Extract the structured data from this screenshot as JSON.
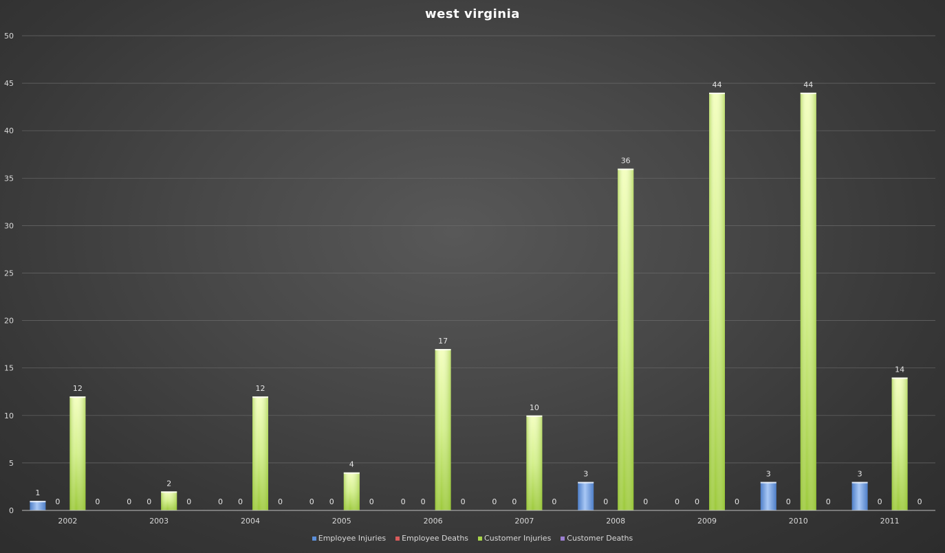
{
  "chart_data": {
    "type": "bar",
    "title": "west virginia",
    "categories": [
      "2002",
      "2003",
      "2004",
      "2005",
      "2006",
      "2007",
      "2008",
      "2009",
      "2010",
      "2011"
    ],
    "series": [
      {
        "name": "Employee Injuries",
        "color": "#5b8fd9",
        "values": [
          1,
          0,
          0,
          0,
          0,
          0,
          3,
          0,
          3,
          3
        ]
      },
      {
        "name": "Employee Deaths",
        "color": "#d95b5b",
        "values": [
          0,
          0,
          0,
          0,
          0,
          0,
          0,
          0,
          0,
          0
        ]
      },
      {
        "name": "Customer Injuries",
        "color": "#a8d44a",
        "values": [
          12,
          2,
          12,
          4,
          17,
          10,
          36,
          44,
          44,
          14
        ]
      },
      {
        "name": "Customer Deaths",
        "color": "#9b7fd0",
        "values": [
          0,
          0,
          0,
          0,
          0,
          0,
          0,
          0,
          0,
          0
        ]
      }
    ],
    "ylim": [
      0,
      50
    ],
    "yticks": [
      "0",
      "5",
      "10",
      "15",
      "20",
      "25",
      "30",
      "35",
      "40",
      "45",
      "50"
    ],
    "grid": true,
    "legend": "bottom"
  }
}
